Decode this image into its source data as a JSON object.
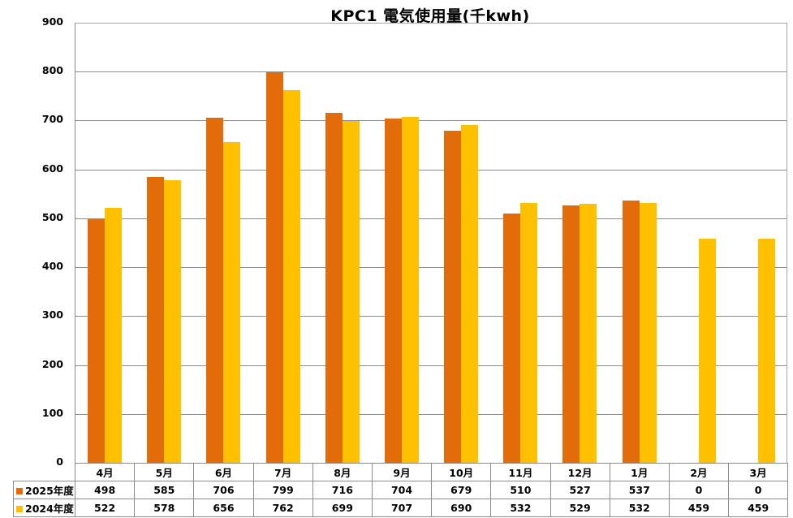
{
  "chart_data": {
    "type": "bar",
    "title": "KPC1 電気使用量(千kwh)",
    "xlabel": "",
    "ylabel": "",
    "ylim": [
      0,
      900
    ],
    "yticks": [
      0,
      100,
      200,
      300,
      400,
      500,
      600,
      700,
      800,
      900
    ],
    "grid": true,
    "legend_position": "data-table",
    "categories": [
      "4月",
      "5月",
      "6月",
      "7月",
      "8月",
      "9月",
      "10月",
      "11月",
      "12月",
      "1月",
      "2月",
      "3月"
    ],
    "series": [
      {
        "name": "2025年度",
        "color": "#E36C0A",
        "values": [
          498,
          585,
          706,
          799,
          716,
          704,
          679,
          510,
          527,
          537,
          0,
          0
        ]
      },
      {
        "name": "2024年度",
        "color": "#FFC000",
        "values": [
          522,
          578,
          656,
          762,
          699,
          707,
          690,
          532,
          529,
          532,
          459,
          459
        ]
      }
    ]
  },
  "table": {
    "header": [
      "4月",
      "5月",
      "6月",
      "7月",
      "8月",
      "9月",
      "10月",
      "11月",
      "12月",
      "1月",
      "2月",
      "3月"
    ],
    "rows": [
      {
        "label": "2025年度",
        "cells": [
          "498",
          "585",
          "706",
          "799",
          "716",
          "704",
          "679",
          "510",
          "527",
          "537",
          "0",
          "0"
        ]
      },
      {
        "label": "2024年度",
        "cells": [
          "522",
          "578",
          "656",
          "762",
          "699",
          "707",
          "690",
          "532",
          "529",
          "532",
          "459",
          "459"
        ]
      }
    ]
  }
}
